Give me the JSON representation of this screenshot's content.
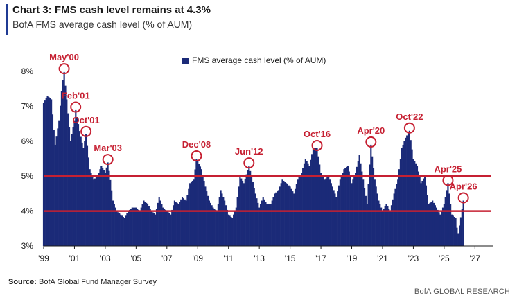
{
  "title": "Chart 3: FMS cash level remains at 4.3%",
  "subtitle": "BofA FMS average cash level (% of AUM)",
  "source_label": "Source:",
  "source_text": "BofA Global Fund Manager Survey",
  "brand": "BofA GLOBAL RESEARCH",
  "colors": {
    "bars": "#1b2a78",
    "reference_lines": "#c62032",
    "annotation": "#c62032",
    "title_accent": "#1f3a93"
  },
  "chart_data": {
    "type": "bar",
    "title": "",
    "legend": {
      "label": "FMS average cash level (% of AUM)",
      "placement": "top-center"
    },
    "ylim": [
      3,
      8.3
    ],
    "yticks": [
      3,
      4,
      5,
      6,
      7,
      8
    ],
    "ytick_labels": [
      "3%",
      "4%",
      "5%",
      "6%",
      "7%",
      "8%"
    ],
    "xlim": [
      1999.0,
      2028.2
    ],
    "xticks": [
      1999,
      2001,
      2003,
      2005,
      2007,
      2009,
      2011,
      2013,
      2015,
      2017,
      2019,
      2021,
      2023,
      2025,
      2027
    ],
    "xtick_labels": [
      "'99",
      "'01",
      "'03",
      "'05",
      "'07",
      "'09",
      "'11",
      "'13",
      "'15",
      "'17",
      "'19",
      "'21",
      "'23",
      "'25",
      "'27"
    ],
    "reference_lines": [
      4.0,
      5.0
    ],
    "series": [
      {
        "points": [
          [
            1999.0,
            7.1
          ],
          [
            1999.25,
            7.3
          ],
          [
            1999.5,
            7.2
          ],
          [
            1999.75,
            5.9
          ],
          [
            2000.0,
            6.6
          ],
          [
            2000.2,
            7.6
          ],
          [
            2000.33,
            8.0
          ],
          [
            2000.5,
            7.2
          ],
          [
            2000.75,
            6.0
          ],
          [
            2001.0,
            6.6
          ],
          [
            2001.08,
            6.9
          ],
          [
            2001.33,
            6.3
          ],
          [
            2001.58,
            5.8
          ],
          [
            2001.75,
            6.2
          ],
          [
            2002.0,
            5.2
          ],
          [
            2002.25,
            4.9
          ],
          [
            2002.5,
            5.0
          ],
          [
            2002.75,
            5.3
          ],
          [
            2003.0,
            5.1
          ],
          [
            2003.17,
            5.4
          ],
          [
            2003.33,
            4.9
          ],
          [
            2003.5,
            4.3
          ],
          [
            2003.75,
            4.0
          ],
          [
            2004.0,
            3.9
          ],
          [
            2004.25,
            3.8
          ],
          [
            2004.5,
            4.0
          ],
          [
            2004.75,
            4.1
          ],
          [
            2005.0,
            4.1
          ],
          [
            2005.25,
            4.0
          ],
          [
            2005.5,
            4.3
          ],
          [
            2005.75,
            4.2
          ],
          [
            2006.0,
            4.0
          ],
          [
            2006.25,
            3.9
          ],
          [
            2006.5,
            4.4
          ],
          [
            2006.75,
            4.1
          ],
          [
            2007.0,
            4.0
          ],
          [
            2007.25,
            3.9
          ],
          [
            2007.5,
            4.3
          ],
          [
            2007.75,
            4.2
          ],
          [
            2008.0,
            4.4
          ],
          [
            2008.25,
            4.3
          ],
          [
            2008.5,
            4.8
          ],
          [
            2008.75,
            4.9
          ],
          [
            2008.92,
            5.5
          ],
          [
            2009.25,
            5.2
          ],
          [
            2009.5,
            4.7
          ],
          [
            2009.75,
            4.3
          ],
          [
            2010.0,
            4.1
          ],
          [
            2010.25,
            4.0
          ],
          [
            2010.5,
            4.6
          ],
          [
            2010.75,
            4.3
          ],
          [
            2011.0,
            3.9
          ],
          [
            2011.25,
            3.8
          ],
          [
            2011.5,
            4.1
          ],
          [
            2011.75,
            5.0
          ],
          [
            2012.0,
            4.8
          ],
          [
            2012.33,
            5.3
          ],
          [
            2012.5,
            5.0
          ],
          [
            2012.75,
            4.5
          ],
          [
            2013.0,
            4.1
          ],
          [
            2013.25,
            4.4
          ],
          [
            2013.5,
            4.2
          ],
          [
            2013.75,
            4.2
          ],
          [
            2014.0,
            4.5
          ],
          [
            2014.25,
            4.6
          ],
          [
            2014.5,
            4.9
          ],
          [
            2014.75,
            4.8
          ],
          [
            2015.0,
            4.7
          ],
          [
            2015.25,
            4.5
          ],
          [
            2015.5,
            4.9
          ],
          [
            2015.75,
            5.1
          ],
          [
            2016.0,
            5.5
          ],
          [
            2016.25,
            5.3
          ],
          [
            2016.5,
            5.8
          ],
          [
            2016.75,
            5.8
          ],
          [
            2017.0,
            5.1
          ],
          [
            2017.25,
            4.9
          ],
          [
            2017.5,
            5.0
          ],
          [
            2017.75,
            4.7
          ],
          [
            2018.0,
            4.4
          ],
          [
            2018.25,
            4.9
          ],
          [
            2018.5,
            5.2
          ],
          [
            2018.75,
            5.3
          ],
          [
            2019.0,
            4.8
          ],
          [
            2019.25,
            5.1
          ],
          [
            2019.5,
            5.6
          ],
          [
            2019.75,
            4.9
          ],
          [
            2020.0,
            4.2
          ],
          [
            2020.25,
            5.9
          ],
          [
            2020.5,
            4.9
          ],
          [
            2020.75,
            4.3
          ],
          [
            2021.0,
            4.0
          ],
          [
            2021.25,
            4.2
          ],
          [
            2021.5,
            4.0
          ],
          [
            2021.75,
            4.5
          ],
          [
            2022.0,
            4.9
          ],
          [
            2022.25,
            5.8
          ],
          [
            2022.5,
            6.1
          ],
          [
            2022.75,
            6.3
          ],
          [
            2023.0,
            5.5
          ],
          [
            2023.25,
            5.3
          ],
          [
            2023.5,
            4.8
          ],
          [
            2023.75,
            5.0
          ],
          [
            2024.0,
            4.2
          ],
          [
            2024.25,
            4.3
          ],
          [
            2024.5,
            4.1
          ],
          [
            2024.75,
            3.9
          ],
          [
            2025.0,
            4.2
          ],
          [
            2025.25,
            4.8
          ],
          [
            2025.5,
            3.9
          ],
          [
            2025.75,
            3.8
          ],
          [
            2025.9,
            3.3
          ],
          [
            2026.25,
            4.3
          ]
        ]
      }
    ],
    "annotations": [
      {
        "label": "May'00",
        "x": 2000.33,
        "y": 8.0
      },
      {
        "label": "Feb'01",
        "x": 2001.08,
        "y": 6.9
      },
      {
        "label": "Oct'01",
        "x": 2001.75,
        "y": 6.2
      },
      {
        "label": "Mar'03",
        "x": 2003.17,
        "y": 5.4
      },
      {
        "label": "Dec'08",
        "x": 2008.92,
        "y": 5.5
      },
      {
        "label": "Jun'12",
        "x": 2012.33,
        "y": 5.3
      },
      {
        "label": "Oct'16",
        "x": 2016.75,
        "y": 5.8
      },
      {
        "label": "Apr'20",
        "x": 2020.25,
        "y": 5.9
      },
      {
        "label": "Oct'22",
        "x": 2022.75,
        "y": 6.3
      },
      {
        "label": "Apr'25",
        "x": 2025.25,
        "y": 4.8
      },
      {
        "label": "Apr'26",
        "x": 2026.25,
        "y": 4.3
      }
    ]
  }
}
